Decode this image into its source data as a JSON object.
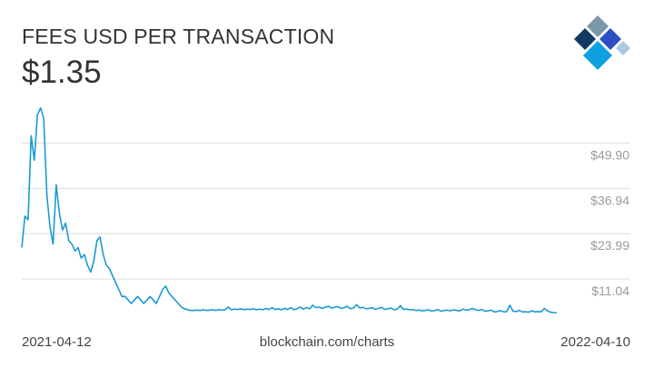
{
  "header": {
    "title": "FEES USD PER TRANSACTION",
    "current_value": "$1.35"
  },
  "footer": {
    "start_date": "2021-04-12",
    "source": "blockchain.com/charts",
    "end_date": "2022-04-10"
  },
  "logo": {
    "icon": "blockchain-diamond-logo-icon",
    "colors": [
      "#7a98a8",
      "#123a63",
      "#2d4fc3",
      "#a9c9e0",
      "#0fa0e0"
    ]
  },
  "colors": {
    "line": "#1b9bd1",
    "grid": "#dddddd",
    "tick_label": "#9a9a9a",
    "text": "#333333"
  },
  "chart_data": {
    "type": "line",
    "title": "FEES USD PER TRANSACTION",
    "x_range": [
      "2021-04-12",
      "2022-04-10"
    ],
    "y_ticks": [
      11.04,
      23.99,
      36.94,
      49.9
    ],
    "y_tick_labels": [
      "$11.04",
      "$23.99",
      "$36.94",
      "$49.90"
    ],
    "ylim": [
      0,
      62
    ],
    "grid": true,
    "legend": "none",
    "series": [
      {
        "values": [
          20,
          29,
          28,
          52,
          45,
          58,
          60,
          57,
          35,
          26,
          21,
          38,
          30,
          25,
          27,
          22,
          21,
          19,
          20,
          17,
          18,
          15,
          13,
          16,
          22,
          23,
          18,
          15,
          14,
          12,
          10,
          8,
          6,
          6,
          5,
          4,
          5,
          6,
          5,
          4,
          5,
          6,
          5,
          4,
          6,
          8,
          9,
          7,
          6,
          5,
          4,
          3,
          2.5,
          2.2,
          2,
          2,
          2.1,
          2,
          2.2,
          2,
          2.1,
          2.2,
          2,
          2.3,
          2.1,
          2.2,
          3,
          2.2,
          2.4,
          2.3,
          2.5,
          2.2,
          2.4,
          2.3,
          2.5,
          2.2,
          2.4,
          2.2,
          2.6,
          2.3,
          2.8,
          2.3,
          2.5,
          2.2,
          2.6,
          2.3,
          2.8,
          2.2,
          2.5,
          3,
          2.4,
          2.8,
          2.5,
          3.5,
          2.8,
          3,
          2.6,
          2.9,
          3.2,
          2.7,
          2.9,
          3.1,
          2.6,
          2.8,
          3.2,
          2.5,
          2.7,
          3.7,
          2.7,
          2.9,
          2.5,
          2.6,
          2.8,
          2.3,
          2.6,
          2.9,
          2.3,
          2.5,
          2.7,
          2.2,
          2.4,
          3.4,
          2.3,
          2.4,
          2.2,
          2.3,
          2,
          2.1,
          1.9,
          2,
          2.2,
          1.8,
          2,
          2.3,
          1.8,
          2,
          2.1,
          1.9,
          2.2,
          2,
          1.9,
          2.4,
          2.1,
          2.2,
          2.6,
          2.2,
          2,
          2.3,
          1.8,
          1.9,
          2.1,
          1.6,
          1.7,
          2,
          1.6,
          1.7,
          3.5,
          1.8,
          1.7,
          2,
          1.6,
          1.6,
          1.5,
          1.9,
          1.6,
          1.7,
          1.6,
          2.6,
          1.9,
          1.5,
          1.4,
          1.35
        ]
      }
    ]
  }
}
